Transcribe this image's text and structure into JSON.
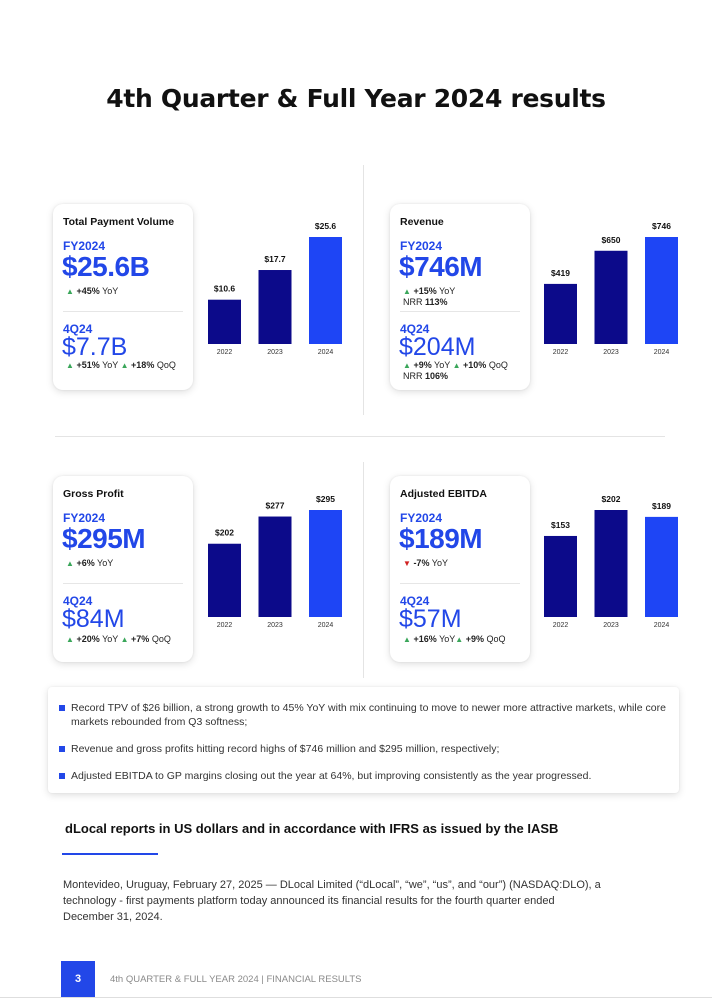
{
  "page": {
    "title": "4th Quarter & Full Year 2024 results",
    "page_number": "3",
    "footer": "4th QUARTER & FULL YEAR 2024 | FINANCIAL RESULTS"
  },
  "colors": {
    "accent": "#2247e8",
    "bar_dark": "#0c0a8a",
    "bar_bright": "#1e45f5",
    "up": "#3aa65a",
    "down": "#d12020"
  },
  "cards": {
    "tpv": {
      "title": "Total Payment Volume",
      "fy_label": "FY2024",
      "fy_value": "$25.6B",
      "fy_stat1_value": "+45%",
      "fy_stat1_suffix": "YoY",
      "q_label": "4Q24",
      "q_value": "$7.7B",
      "q_stat1_value": "+51%",
      "q_stat1_suffix": "YoY",
      "q_stat2_value": "+18%",
      "q_stat2_suffix": "QoQ"
    },
    "revenue": {
      "title": "Revenue",
      "fy_label": "FY2024",
      "fy_value": "$746M",
      "fy_stat1_value": "+15%",
      "fy_stat1_suffix": "YoY",
      "fy_nrr_label": "NRR",
      "fy_nrr_value": "113%",
      "q_label": "4Q24",
      "q_value": "$204M",
      "q_stat1_value": "+9%",
      "q_stat1_suffix": "YoY",
      "q_stat2_value": "+10%",
      "q_stat2_suffix": "QoQ",
      "q_nrr_label": "NRR",
      "q_nrr_value": "106%"
    },
    "gross_profit": {
      "title": "Gross Profit",
      "fy_label": "FY2024",
      "fy_value": "$295M",
      "fy_stat1_value": "+6%",
      "fy_stat1_suffix": "YoY",
      "q_label": "4Q24",
      "q_value": "$84M",
      "q_stat1_value": "+20%",
      "q_stat1_suffix": "YoY",
      "q_stat2_value": "+7%",
      "q_stat2_suffix": "QoQ"
    },
    "ebitda": {
      "title": "Adjusted EBITDA",
      "fy_label": "FY2024",
      "fy_value": "$189M",
      "fy_stat1_value": "-7%",
      "fy_stat1_suffix": "YoY",
      "q_label": "4Q24",
      "q_value": "$57M",
      "q_stat1_value": "+16%",
      "q_stat1_suffix": "YoY",
      "q_stat2_value": "+9%",
      "q_stat2_suffix": "QoQ"
    }
  },
  "chart_data": [
    {
      "id": "tpv",
      "type": "bar",
      "title": "Total Payment Volume",
      "categories": [
        "2022",
        "2023",
        "2024"
      ],
      "values": [
        10.6,
        17.7,
        25.6
      ],
      "labels": [
        "$10.6",
        "$17.7",
        "$25.6"
      ],
      "ylim": [
        0,
        25.6
      ]
    },
    {
      "id": "revenue",
      "type": "bar",
      "title": "Revenue",
      "categories": [
        "2022",
        "2023",
        "2024"
      ],
      "values": [
        419,
        650,
        746
      ],
      "labels": [
        "$419",
        "$650",
        "$746"
      ],
      "ylim": [
        0,
        746
      ]
    },
    {
      "id": "gross_profit",
      "type": "bar",
      "title": "Gross Profit",
      "categories": [
        "2022",
        "2023",
        "2024"
      ],
      "values": [
        202,
        277,
        295
      ],
      "labels": [
        "$202",
        "$277",
        "$295"
      ],
      "ylim": [
        0,
        295
      ]
    },
    {
      "id": "ebitda",
      "type": "bar",
      "title": "Adjusted EBITDA",
      "categories": [
        "2022",
        "2023",
        "2024"
      ],
      "values": [
        153,
        202,
        189
      ],
      "labels": [
        "$153",
        "$202",
        "$189"
      ],
      "ylim": [
        0,
        202
      ]
    }
  ],
  "highlights": [
    "Record TPV of $26 billion, a strong growth to 45% YoY with mix continuing to move to newer more attractive markets, while core markets rebounded from Q3 softness;",
    "Revenue and gross profits hitting record highs of $746 million and $295 million, respectively;",
    "Adjusted EBITDA to GP margins closing out the year at 64%, but improving consistently as the year progressed."
  ],
  "section": {
    "heading": "dLocal reports in US dollars and in accordance with IFRS as issued by the IASB",
    "body": "Montevideo, Uruguay, February 27, 2025 — DLocal Limited (“dLocal”, “we”, “us”, and “our”) (NASDAQ:DLO), a technology - first payments platform today announced its financial results for the fourth quarter ended December 31, 2024."
  }
}
